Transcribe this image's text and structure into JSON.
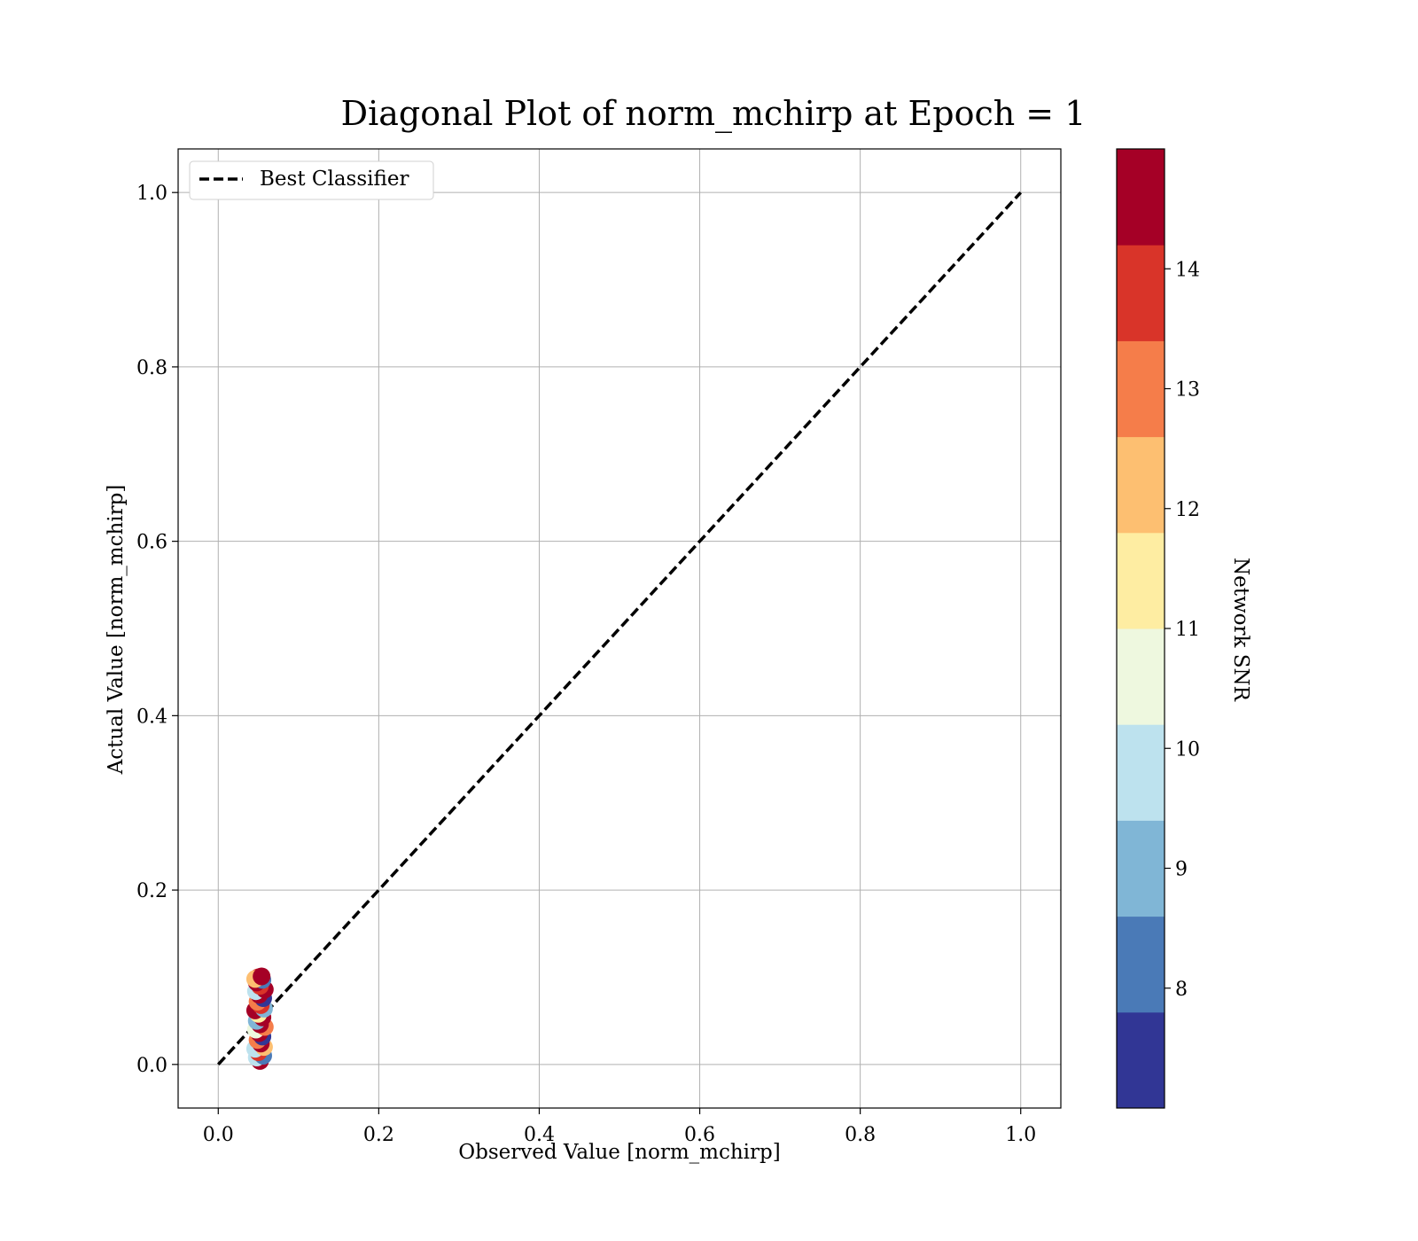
{
  "chart_data": {
    "type": "scatter",
    "title": "Diagonal Plot of norm_mchirp at Epoch = 1",
    "xlabel": "Observed Value [norm_mchirp]",
    "ylabel": "Actual Value [norm_mchirp]",
    "xlim": [
      -0.05,
      1.05
    ],
    "ylim": [
      -0.05,
      1.05
    ],
    "xticks": [
      "0.0",
      "0.2",
      "0.4",
      "0.6",
      "0.8",
      "1.0"
    ],
    "yticks": [
      "0.0",
      "0.2",
      "0.4",
      "0.6",
      "0.8",
      "1.0"
    ],
    "xtick_values": [
      0,
      0.2,
      0.4,
      0.6,
      0.8,
      1.0
    ],
    "ytick_values": [
      0,
      0.2,
      0.4,
      0.6,
      0.8,
      1.0
    ],
    "grid": true,
    "legend": {
      "placement": "top-left",
      "entries": [
        "Best Classifier"
      ]
    },
    "reference_line": {
      "name": "Best Classifier",
      "style": "dashed",
      "color": "#000000",
      "x": [
        0,
        1
      ],
      "y": [
        0,
        1
      ]
    },
    "colorbar": {
      "label": "Network SNR",
      "range": [
        7,
        15
      ],
      "ticks": [
        8,
        9,
        10,
        11,
        12,
        13,
        14
      ],
      "tick_labels": [
        "8",
        "9",
        "10",
        "11",
        "12",
        "13",
        "14"
      ],
      "bands": [
        "#313695",
        "#4a7ab7",
        "#80b6d6",
        "#bde2ee",
        "#eef8df",
        "#feeda2",
        "#fdbf71",
        "#f57d4a",
        "#d93429",
        "#a50026"
      ]
    },
    "points": [
      {
        "x": 0.052,
        "y": 0.004,
        "snr": 14.6
      },
      {
        "x": 0.048,
        "y": 0.008,
        "snr": 10.2
      },
      {
        "x": 0.056,
        "y": 0.01,
        "snr": 8.3
      },
      {
        "x": 0.05,
        "y": 0.014,
        "snr": 14.2
      },
      {
        "x": 0.046,
        "y": 0.018,
        "snr": 9.6
      },
      {
        "x": 0.057,
        "y": 0.02,
        "snr": 12.4
      },
      {
        "x": 0.053,
        "y": 0.024,
        "snr": 14.8
      },
      {
        "x": 0.049,
        "y": 0.028,
        "snr": 13.3
      },
      {
        "x": 0.055,
        "y": 0.032,
        "snr": 7.4
      },
      {
        "x": 0.051,
        "y": 0.036,
        "snr": 14.5
      },
      {
        "x": 0.047,
        "y": 0.04,
        "snr": 10.7
      },
      {
        "x": 0.058,
        "y": 0.043,
        "snr": 13.1
      },
      {
        "x": 0.052,
        "y": 0.046,
        "snr": 14.9
      },
      {
        "x": 0.048,
        "y": 0.05,
        "snr": 8.8
      },
      {
        "x": 0.055,
        "y": 0.054,
        "snr": 14.3
      },
      {
        "x": 0.05,
        "y": 0.058,
        "snr": 11.5
      },
      {
        "x": 0.046,
        "y": 0.062,
        "snr": 14.7
      },
      {
        "x": 0.057,
        "y": 0.064,
        "snr": 9.2
      },
      {
        "x": 0.053,
        "y": 0.068,
        "snr": 14.1
      },
      {
        "x": 0.049,
        "y": 0.072,
        "snr": 12.8
      },
      {
        "x": 0.056,
        "y": 0.076,
        "snr": 7.8
      },
      {
        "x": 0.051,
        "y": 0.08,
        "snr": 14.6
      },
      {
        "x": 0.047,
        "y": 0.084,
        "snr": 10.1
      },
      {
        "x": 0.058,
        "y": 0.086,
        "snr": 14.4
      },
      {
        "x": 0.052,
        "y": 0.09,
        "snr": 13.6
      },
      {
        "x": 0.048,
        "y": 0.094,
        "snr": 14.9
      },
      {
        "x": 0.055,
        "y": 0.097,
        "snr": 8.1
      },
      {
        "x": 0.05,
        "y": 0.1,
        "snr": 14.2
      },
      {
        "x": 0.046,
        "y": 0.098,
        "snr": 12.2
      },
      {
        "x": 0.054,
        "y": 0.101,
        "snr": 14.8
      }
    ]
  }
}
